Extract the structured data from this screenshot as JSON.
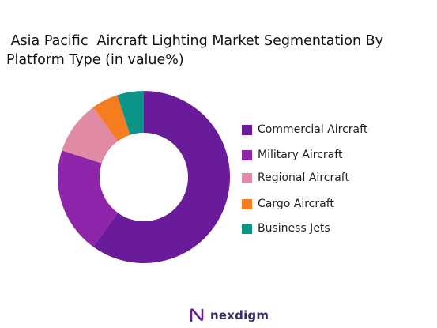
{
  "chart_data": {
    "type": "pie",
    "variant": "donut",
    "title": " Asia Pacific  Aircraft Lighting Market Segmentation By\nPlatform Type (in value%)",
    "categories": [
      "Commercial Aircraft",
      "Military Aircraft",
      "Regional Aircraft",
      "Cargo Aircraft",
      "Business Jets"
    ],
    "values": [
      60,
      20,
      10,
      5,
      5
    ],
    "colors": [
      "#6a1b9a",
      "#8e24aa",
      "#e08ba3",
      "#f57c1f",
      "#0c9488"
    ],
    "legend_position": "right"
  },
  "brand": {
    "logo_text": "nexdigm",
    "logo_icon": "nexdigm-n-icon"
  }
}
